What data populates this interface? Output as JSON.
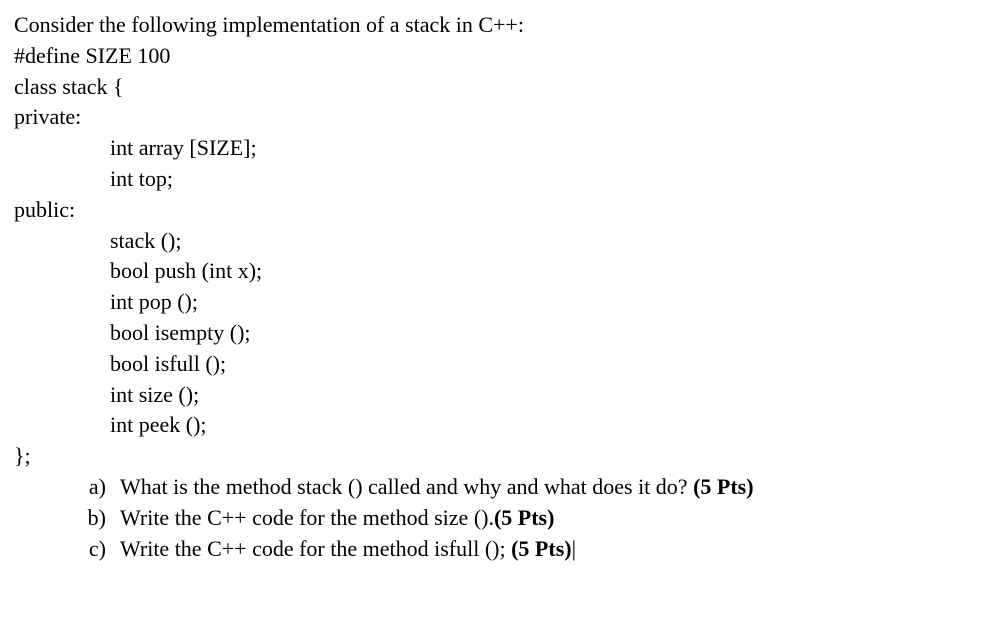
{
  "intro": "Consider the following implementation of a stack in C++:",
  "code": {
    "l1": "#define SIZE 100",
    "l2": "class stack {",
    "l3": "private:",
    "l4": "int array [SIZE];",
    "l5": "int top;",
    "l6": "public:",
    "l7": "stack ();",
    "l8": "bool push (int x);",
    "l9": "int pop ();",
    "l10": "bool isempty ();",
    "l11": "bool isfull ();",
    "l12": "int size ();",
    "l13": "int peek ();",
    "l14": "};"
  },
  "questions": {
    "a": {
      "marker": "a)",
      "text": "What is the method stack () called and why and what does it do? ",
      "points": "(5 Pts)"
    },
    "b": {
      "marker": "b)",
      "text": "Write the C++ code for the method size ().",
      "points": "(5 Pts)"
    },
    "c": {
      "marker": "c)",
      "text": "Write the C++ code for the method isfull (); ",
      "points": "(5 Pts)"
    }
  }
}
